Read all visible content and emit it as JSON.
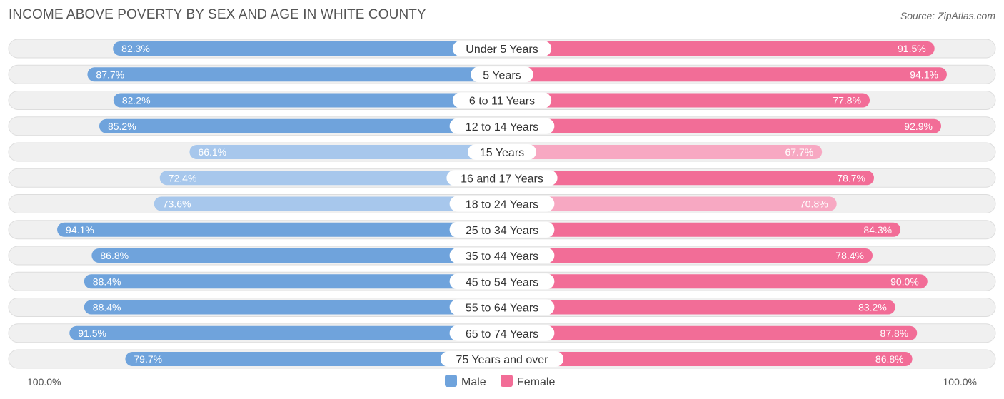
{
  "title": "INCOME ABOVE POVERTY BY SEX AND AGE IN WHITE COUNTY",
  "source": "Source: ZipAtlas.com",
  "chart_data": {
    "type": "bar",
    "orientation": "horizontal-diverging",
    "title": "INCOME ABOVE POVERTY BY SEX AND AGE IN WHITE COUNTY",
    "categories": [
      "Under 5 Years",
      "5 Years",
      "6 to 11 Years",
      "12 to 14 Years",
      "15 Years",
      "16 and 17 Years",
      "18 to 24 Years",
      "25 to 34 Years",
      "35 to 44 Years",
      "45 to 54 Years",
      "55 to 64 Years",
      "65 to 74 Years",
      "75 Years and over"
    ],
    "series": [
      {
        "name": "Male",
        "values": [
          82.3,
          87.7,
          82.2,
          85.2,
          66.1,
          72.4,
          73.6,
          94.1,
          86.8,
          88.4,
          88.4,
          91.5,
          79.7
        ],
        "labels": [
          "82.3%",
          "87.7%",
          "82.2%",
          "85.2%",
          "66.1%",
          "72.4%",
          "73.6%",
          "94.1%",
          "86.8%",
          "88.4%",
          "88.4%",
          "91.5%",
          "79.7%"
        ]
      },
      {
        "name": "Female",
        "values": [
          91.5,
          94.1,
          77.8,
          92.9,
          67.7,
          78.7,
          70.8,
          84.3,
          78.4,
          90.0,
          83.2,
          87.8,
          86.8
        ],
        "labels": [
          "91.5%",
          "94.1%",
          "77.8%",
          "92.9%",
          "67.7%",
          "78.7%",
          "70.8%",
          "84.3%",
          "78.4%",
          "90.0%",
          "83.2%",
          "87.8%",
          "86.8%"
        ]
      }
    ],
    "xlim": [
      0,
      100
    ],
    "axis_left_label": "100.0%",
    "axis_right_label": "100.0%",
    "legend": [
      "Male",
      "Female"
    ],
    "legend_position": "bottom-center"
  },
  "colors": {
    "male_strong": "#6fa3dc",
    "male_light": "#a7c7ec",
    "female_strong": "#f26d97",
    "female_light": "#f7a8c2",
    "track": "#f0f0f0",
    "track_border": "#dddddd",
    "label_bg": "#ffffff"
  }
}
